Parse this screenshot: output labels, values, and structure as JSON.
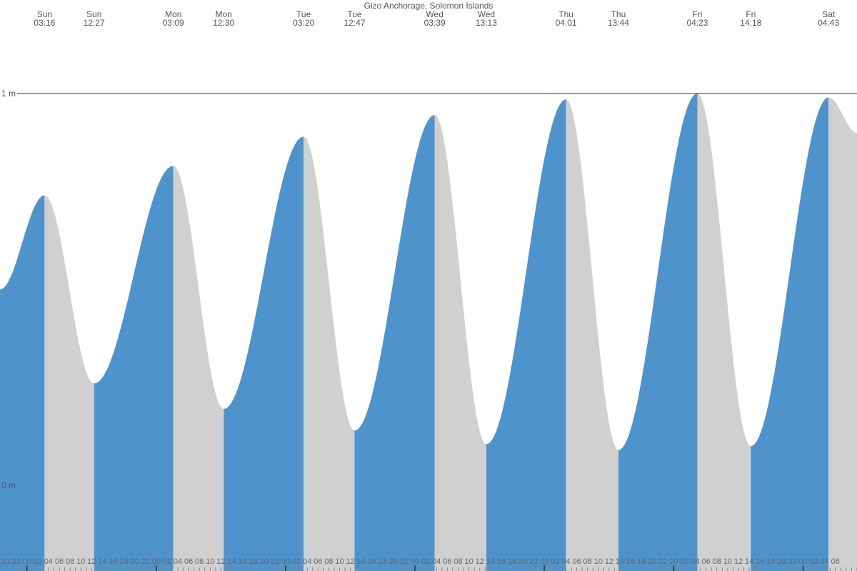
{
  "chart_data": {
    "type": "area",
    "title": "Gizo Anchorage, Solomon Islands",
    "y_unit": "m",
    "y_ticks": [
      {
        "value": 1,
        "label": "1 m"
      },
      {
        "value": 0,
        "label": "0 m"
      }
    ],
    "ylim": [
      -0.2,
      1.24
    ],
    "x_range_hours": [
      -5,
      154
    ],
    "grid": "single reference line at 1 m",
    "colors": {
      "rising": "#4f93cd",
      "falling": "#d0d0d0",
      "axis": "#333333",
      "text": "#555555"
    },
    "start_value": 0.5,
    "end_value": 0.9,
    "events": [
      {
        "day": "Sun",
        "time": "03:16",
        "type": "high",
        "height": 0.74
      },
      {
        "day": "Sun",
        "time": "12:27",
        "type": "low",
        "height": 0.26
      },
      {
        "day": "Mon",
        "time": "03:09",
        "type": "high",
        "height": 0.815
      },
      {
        "day": "Mon",
        "time": "12:30",
        "type": "low",
        "height": 0.195
      },
      {
        "day": "Tue",
        "time": "03:20",
        "type": "high",
        "height": 0.89
      },
      {
        "day": "Tue",
        "time": "12:47",
        "type": "low",
        "height": 0.14
      },
      {
        "day": "Wed",
        "time": "03:39",
        "type": "high",
        "height": 0.945
      },
      {
        "day": "Wed",
        "time": "13:13",
        "type": "low",
        "height": 0.105
      },
      {
        "day": "Thu",
        "time": "04:01",
        "type": "high",
        "height": 0.985
      },
      {
        "day": "Thu",
        "time": "13:44",
        "type": "low",
        "height": 0.09
      },
      {
        "day": "Fri",
        "time": "04:23",
        "type": "high",
        "height": 1.0
      },
      {
        "day": "Fri",
        "time": "14:18",
        "type": "low",
        "height": 0.1
      },
      {
        "day": "Sat",
        "time": "04:43",
        "type": "high",
        "height": 0.99
      }
    ],
    "hour_labels": [
      "20",
      "22",
      "00",
      "02",
      "04",
      "06",
      "08",
      "10",
      "12",
      "14",
      "16",
      "18",
      "20",
      "22",
      "00",
      "02",
      "04",
      "06",
      "08",
      "10",
      "12",
      "14",
      "16",
      "18",
      "20",
      "22",
      "00",
      "02",
      "04",
      "06",
      "08",
      "10",
      "12",
      "14",
      "16",
      "18",
      "20",
      "22",
      "00",
      "02",
      "04",
      "06",
      "08",
      "10",
      "12",
      "14",
      "16",
      "18",
      "20",
      "22",
      "00",
      "02",
      "04",
      "06",
      "08",
      "10",
      "12",
      "14",
      "16",
      "18",
      "20",
      "22",
      "00",
      "02",
      "04",
      "06",
      "08",
      "10",
      "12",
      "14",
      "16",
      "18",
      "20",
      "22",
      "00",
      "02",
      "04",
      "06"
    ]
  }
}
